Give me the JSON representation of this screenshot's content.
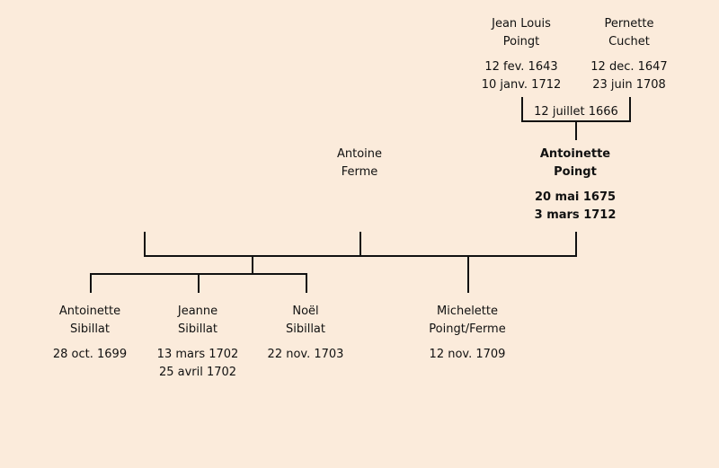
{
  "persons": {
    "jean_louis": {
      "name1": "Jean Louis",
      "name2": "Poingt",
      "date1": "12 fev. 1643",
      "date2": "10 janv. 1712"
    },
    "pernette": {
      "name1": "Pernette",
      "name2": "Cuchet",
      "date1": "12 dec. 1647",
      "date2": "23 juin 1708"
    },
    "antoine": {
      "name1": "Antoine",
      "name2": "Ferme"
    },
    "antoinette_poingt": {
      "name1": "Antoinette",
      "name2": "Poingt",
      "date1": "20 mai 1675",
      "date2": "3 mars 1712"
    },
    "antoinette_sibillat": {
      "name1": "Antoinette",
      "name2": "Sibillat",
      "date1": "28 oct. 1699"
    },
    "jeanne": {
      "name1": "Jeanne",
      "name2": "Sibillat",
      "date1": "13 mars 1702",
      "date2": "25 avril 1702"
    },
    "noel": {
      "name1": "Noël",
      "name2": "Sibillat",
      "date1": "22 nov. 1703"
    },
    "michelette": {
      "name1": "Michelette",
      "name2": "Poingt/Ferme",
      "date1": "12 nov. 1709"
    }
  },
  "marriages": {
    "parents": "12 juillet 1666"
  }
}
